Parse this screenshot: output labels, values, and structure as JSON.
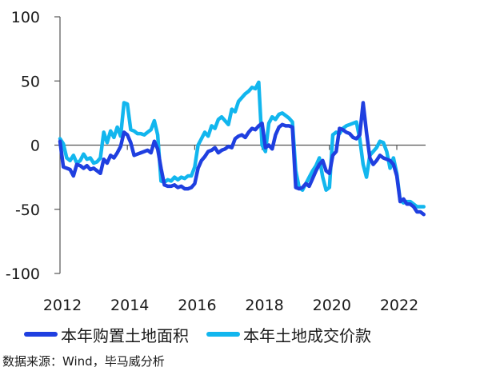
{
  "chart_data": {
    "type": "line",
    "title": "",
    "xlabel": "",
    "ylabel": "",
    "xlim": [
      2012,
      2022.85
    ],
    "ylim": [
      -100,
      100
    ],
    "yticks": [
      100,
      50,
      0,
      -50,
      -100
    ],
    "ytick_labels": [
      "100",
      "50",
      "0",
      "-50",
      "-100"
    ],
    "xticks": [
      2012,
      2014,
      2016,
      2018,
      2020,
      2022
    ],
    "xtick_labels": [
      "2012",
      "2014",
      "2016",
      "2018",
      "2020",
      "2022"
    ],
    "grid": false,
    "legend_position": "bottom",
    "series": [
      {
        "name": "本年购置土地面积",
        "color": "#1f3fe0",
        "x": [
          2012.0,
          2012.1,
          2012.2,
          2012.3,
          2012.4,
          2012.5,
          2012.6,
          2012.7,
          2012.8,
          2012.9,
          2013.0,
          2013.1,
          2013.2,
          2013.3,
          2013.4,
          2013.5,
          2013.6,
          2013.7,
          2013.8,
          2013.9,
          2014.0,
          2014.1,
          2014.2,
          2014.3,
          2014.4,
          2014.5,
          2014.6,
          2014.7,
          2014.8,
          2014.9,
          2015.0,
          2015.1,
          2015.2,
          2015.3,
          2015.4,
          2015.5,
          2015.6,
          2015.7,
          2015.8,
          2015.9,
          2016.0,
          2016.1,
          2016.2,
          2016.3,
          2016.4,
          2016.5,
          2016.6,
          2016.7,
          2016.8,
          2016.9,
          2017.0,
          2017.1,
          2017.2,
          2017.3,
          2017.4,
          2017.5,
          2017.6,
          2017.7,
          2017.8,
          2017.9,
          2018.0,
          2018.1,
          2018.2,
          2018.3,
          2018.4,
          2018.5,
          2018.6,
          2018.7,
          2018.8,
          2018.9,
          2019.0,
          2019.1,
          2019.2,
          2019.3,
          2019.4,
          2019.5,
          2019.6,
          2019.7,
          2019.8,
          2019.9,
          2020.0,
          2020.1,
          2020.2,
          2020.3,
          2020.4,
          2020.5,
          2020.6,
          2020.7,
          2020.8,
          2020.9,
          2021.0,
          2021.1,
          2021.2,
          2021.3,
          2021.4,
          2021.5,
          2021.6,
          2021.7,
          2021.8,
          2021.9,
          2022.0,
          2022.1,
          2022.2,
          2022.3,
          2022.4,
          2022.5,
          2022.6,
          2022.7,
          2022.8
        ],
        "values": [
          3,
          -17,
          -18,
          -19,
          -24,
          -15,
          -16,
          -18,
          -16,
          -19,
          -18,
          -20,
          -22,
          -11,
          -14,
          -8,
          -10,
          -6,
          -1,
          10,
          8,
          2,
          -8,
          -7,
          -6,
          -5,
          -4,
          -6,
          3,
          -3,
          -18,
          -31,
          -32,
          -32,
          -31,
          -33,
          -32,
          -34,
          -34,
          -33,
          -30,
          -18,
          -12,
          -9,
          -5,
          -4,
          -2,
          -6,
          -4,
          -3,
          -1,
          -2,
          5,
          7,
          8,
          6,
          10,
          13,
          12,
          15,
          17,
          -2,
          0,
          -3,
          8,
          14,
          16,
          15,
          15,
          14,
          -33,
          -34,
          -33,
          -30,
          -32,
          -26,
          -20,
          -15,
          -12,
          -20,
          -22,
          -8,
          -5,
          13,
          12,
          10,
          9,
          6,
          5,
          8,
          33,
          10,
          -10,
          -15,
          -12,
          -8,
          -10,
          -11,
          -12,
          -15,
          -24,
          -44,
          -42,
          -46,
          -46,
          -48,
          -52,
          -52,
          -54
        ]
      },
      {
        "name": "本年土地成交价款",
        "color": "#12b6ee",
        "x": [
          2012.0,
          2012.1,
          2012.2,
          2012.3,
          2012.4,
          2012.5,
          2012.6,
          2012.7,
          2012.8,
          2012.9,
          2013.0,
          2013.1,
          2013.2,
          2013.3,
          2013.4,
          2013.5,
          2013.6,
          2013.7,
          2013.8,
          2013.9,
          2014.0,
          2014.1,
          2014.2,
          2014.3,
          2014.4,
          2014.5,
          2014.6,
          2014.7,
          2014.8,
          2014.9,
          2015.0,
          2015.1,
          2015.2,
          2015.3,
          2015.4,
          2015.5,
          2015.6,
          2015.7,
          2015.8,
          2015.9,
          2016.0,
          2016.1,
          2016.2,
          2016.3,
          2016.4,
          2016.5,
          2016.6,
          2016.7,
          2016.8,
          2016.9,
          2017.0,
          2017.1,
          2017.2,
          2017.3,
          2017.4,
          2017.5,
          2017.6,
          2017.7,
          2017.8,
          2017.9,
          2018.0,
          2018.1,
          2018.2,
          2018.3,
          2018.4,
          2018.5,
          2018.6,
          2018.7,
          2018.8,
          2018.9,
          2019.0,
          2019.1,
          2019.2,
          2019.3,
          2019.4,
          2019.5,
          2019.6,
          2019.7,
          2019.8,
          2019.9,
          2020.0,
          2020.1,
          2020.2,
          2020.3,
          2020.4,
          2020.5,
          2020.6,
          2020.7,
          2020.8,
          2020.9,
          2021.0,
          2021.1,
          2021.2,
          2021.3,
          2021.4,
          2021.5,
          2021.6,
          2021.7,
          2021.8,
          2021.9,
          2022.0,
          2022.1,
          2022.2,
          2022.3,
          2022.4,
          2022.5,
          2022.6,
          2022.7,
          2022.8
        ],
        "values": [
          5,
          1,
          -10,
          -12,
          -8,
          -14,
          -12,
          -7,
          -11,
          -10,
          -14,
          -13,
          -10,
          10,
          2,
          11,
          6,
          14,
          7,
          33,
          32,
          12,
          11,
          9,
          9,
          8,
          10,
          12,
          19,
          8,
          -28,
          -29,
          -27,
          -28,
          -25,
          -27,
          -25,
          -26,
          -24,
          -24,
          -17,
          0,
          5,
          10,
          7,
          15,
          13,
          20,
          22,
          19,
          16,
          28,
          26,
          34,
          37,
          40,
          42,
          45,
          44,
          49,
          0,
          -5,
          17,
          22,
          20,
          24,
          25,
          23,
          21,
          18,
          -20,
          -33,
          -35,
          -30,
          -25,
          -20,
          -16,
          -10,
          -25,
          -35,
          -33,
          8,
          10,
          9,
          13,
          15,
          16,
          17,
          18,
          5,
          -15,
          -25,
          -8,
          -5,
          -2,
          3,
          2,
          -5,
          -18,
          -10,
          -22,
          -43,
          -45,
          -44,
          -44,
          -46,
          -48,
          -48,
          -48
        ]
      }
    ]
  },
  "legend": {
    "items": [
      "本年购置土地面积",
      "本年土地成交价款"
    ]
  },
  "source_note": "数据来源：Wind，毕马威分析"
}
